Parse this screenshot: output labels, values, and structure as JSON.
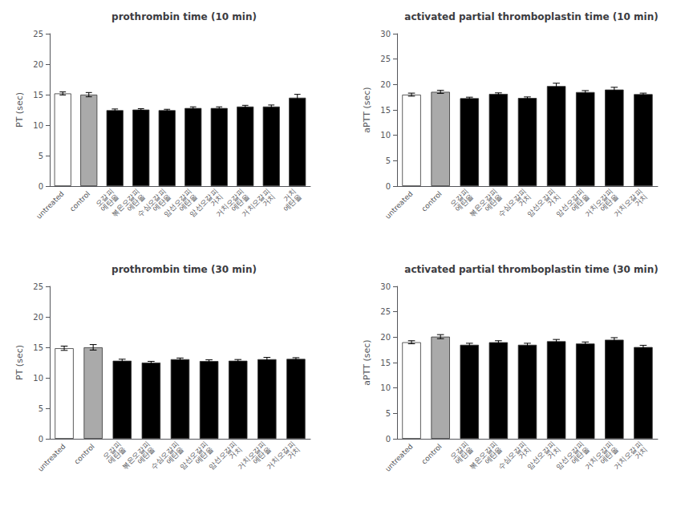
{
  "chart_data": [
    {
      "type": "bar",
      "title": "prothrombin time (10 min)",
      "ylabel": "PT (sec)",
      "categories": [
        "untreated",
        "control",
        "오갈피\n에탄올",
        "볶은오갈피\n에탄올",
        "수심오갈피\n에탄올",
        "암선오갈피\n에탄올",
        "암선오갈피\n거치",
        "거치오갈피\n에탄올",
        "거치오갈피\n거치",
        "거치\n에탄올"
      ],
      "values": [
        15.2,
        15.0,
        12.45,
        12.55,
        12.45,
        12.8,
        12.8,
        13.05,
        13.05,
        14.5
      ],
      "errors": [
        0.25,
        0.35,
        0.2,
        0.15,
        0.15,
        0.2,
        0.2,
        0.2,
        0.25,
        0.55
      ],
      "colors": [
        "white",
        "#aaaaaa",
        "black",
        "black",
        "black",
        "black",
        "black",
        "black",
        "black",
        "black"
      ],
      "ylim": [
        0,
        25
      ],
      "yticks": [
        0,
        5,
        10,
        15,
        20,
        25
      ],
      "grid": false
    },
    {
      "type": "bar",
      "title": "activated partial thromboplastin time (10 min)",
      "ylabel": "aPTT (sec)",
      "categories": [
        "untreated",
        "control",
        "오갈피\n에탄올",
        "볶은오갈피\n에탄올",
        "수심오갈피\n거치",
        "암선오갈피\n거치",
        "암선오갈피\n에탄올",
        "거치오갈피\n에탄올",
        "거치오갈피\n거치"
      ],
      "values": [
        18.0,
        18.55,
        17.3,
        18.15,
        17.35,
        19.7,
        18.5,
        19.0,
        18.1
      ],
      "errors": [
        0.3,
        0.3,
        0.2,
        0.2,
        0.2,
        0.55,
        0.3,
        0.45,
        0.2
      ],
      "colors": [
        "white",
        "#aaaaaa",
        "black",
        "black",
        "black",
        "black",
        "black",
        "black",
        "black"
      ],
      "ylim": [
        0,
        30
      ],
      "yticks": [
        0,
        5,
        10,
        15,
        20,
        25,
        30
      ],
      "grid": false
    },
    {
      "type": "bar",
      "title": "prothrombin time (30 min)",
      "ylabel": "PT (sec)",
      "categories": [
        "untreated",
        "control",
        "오갈피\n에탄올",
        "볶은오갈피\n에탄올",
        "수심오갈피\n에탄올",
        "암선오갈피\n에탄올",
        "암선오갈피\n거치",
        "거치오갈피\n에탄올",
        "거치오갈피\n거치"
      ],
      "values": [
        14.85,
        15.0,
        12.8,
        12.5,
        13.05,
        12.75,
        12.8,
        13.05,
        13.1
      ],
      "errors": [
        0.35,
        0.45,
        0.25,
        0.2,
        0.2,
        0.2,
        0.2,
        0.3,
        0.2
      ],
      "colors": [
        "white",
        "#aaaaaa",
        "black",
        "black",
        "black",
        "black",
        "black",
        "black",
        "black"
      ],
      "ylim": [
        0,
        25
      ],
      "yticks": [
        0,
        5,
        10,
        15,
        20,
        25
      ],
      "grid": false
    },
    {
      "type": "bar",
      "title": "activated partial thromboplastin time (30 min)",
      "ylabel": "aPTT (sec)",
      "categories": [
        "untreated",
        "control",
        "오갈피\n에탄올",
        "볶은오갈피\n에탄올",
        "수심오갈피\n거치",
        "암선오갈피\n거치",
        "암선오갈피\n에탄올",
        "거치오갈피\n에탄올",
        "거치오갈피\n거치"
      ],
      "values": [
        19.0,
        20.1,
        18.5,
        19.0,
        18.5,
        19.2,
        18.75,
        19.5,
        18.05
      ],
      "errors": [
        0.3,
        0.4,
        0.3,
        0.3,
        0.3,
        0.35,
        0.3,
        0.4,
        0.35
      ],
      "colors": [
        "white",
        "#aaaaaa",
        "black",
        "black",
        "black",
        "black",
        "black",
        "black",
        "black"
      ],
      "ylim": [
        0,
        30
      ],
      "yticks": [
        0,
        5,
        10,
        15,
        20,
        25,
        30
      ],
      "grid": false
    }
  ]
}
